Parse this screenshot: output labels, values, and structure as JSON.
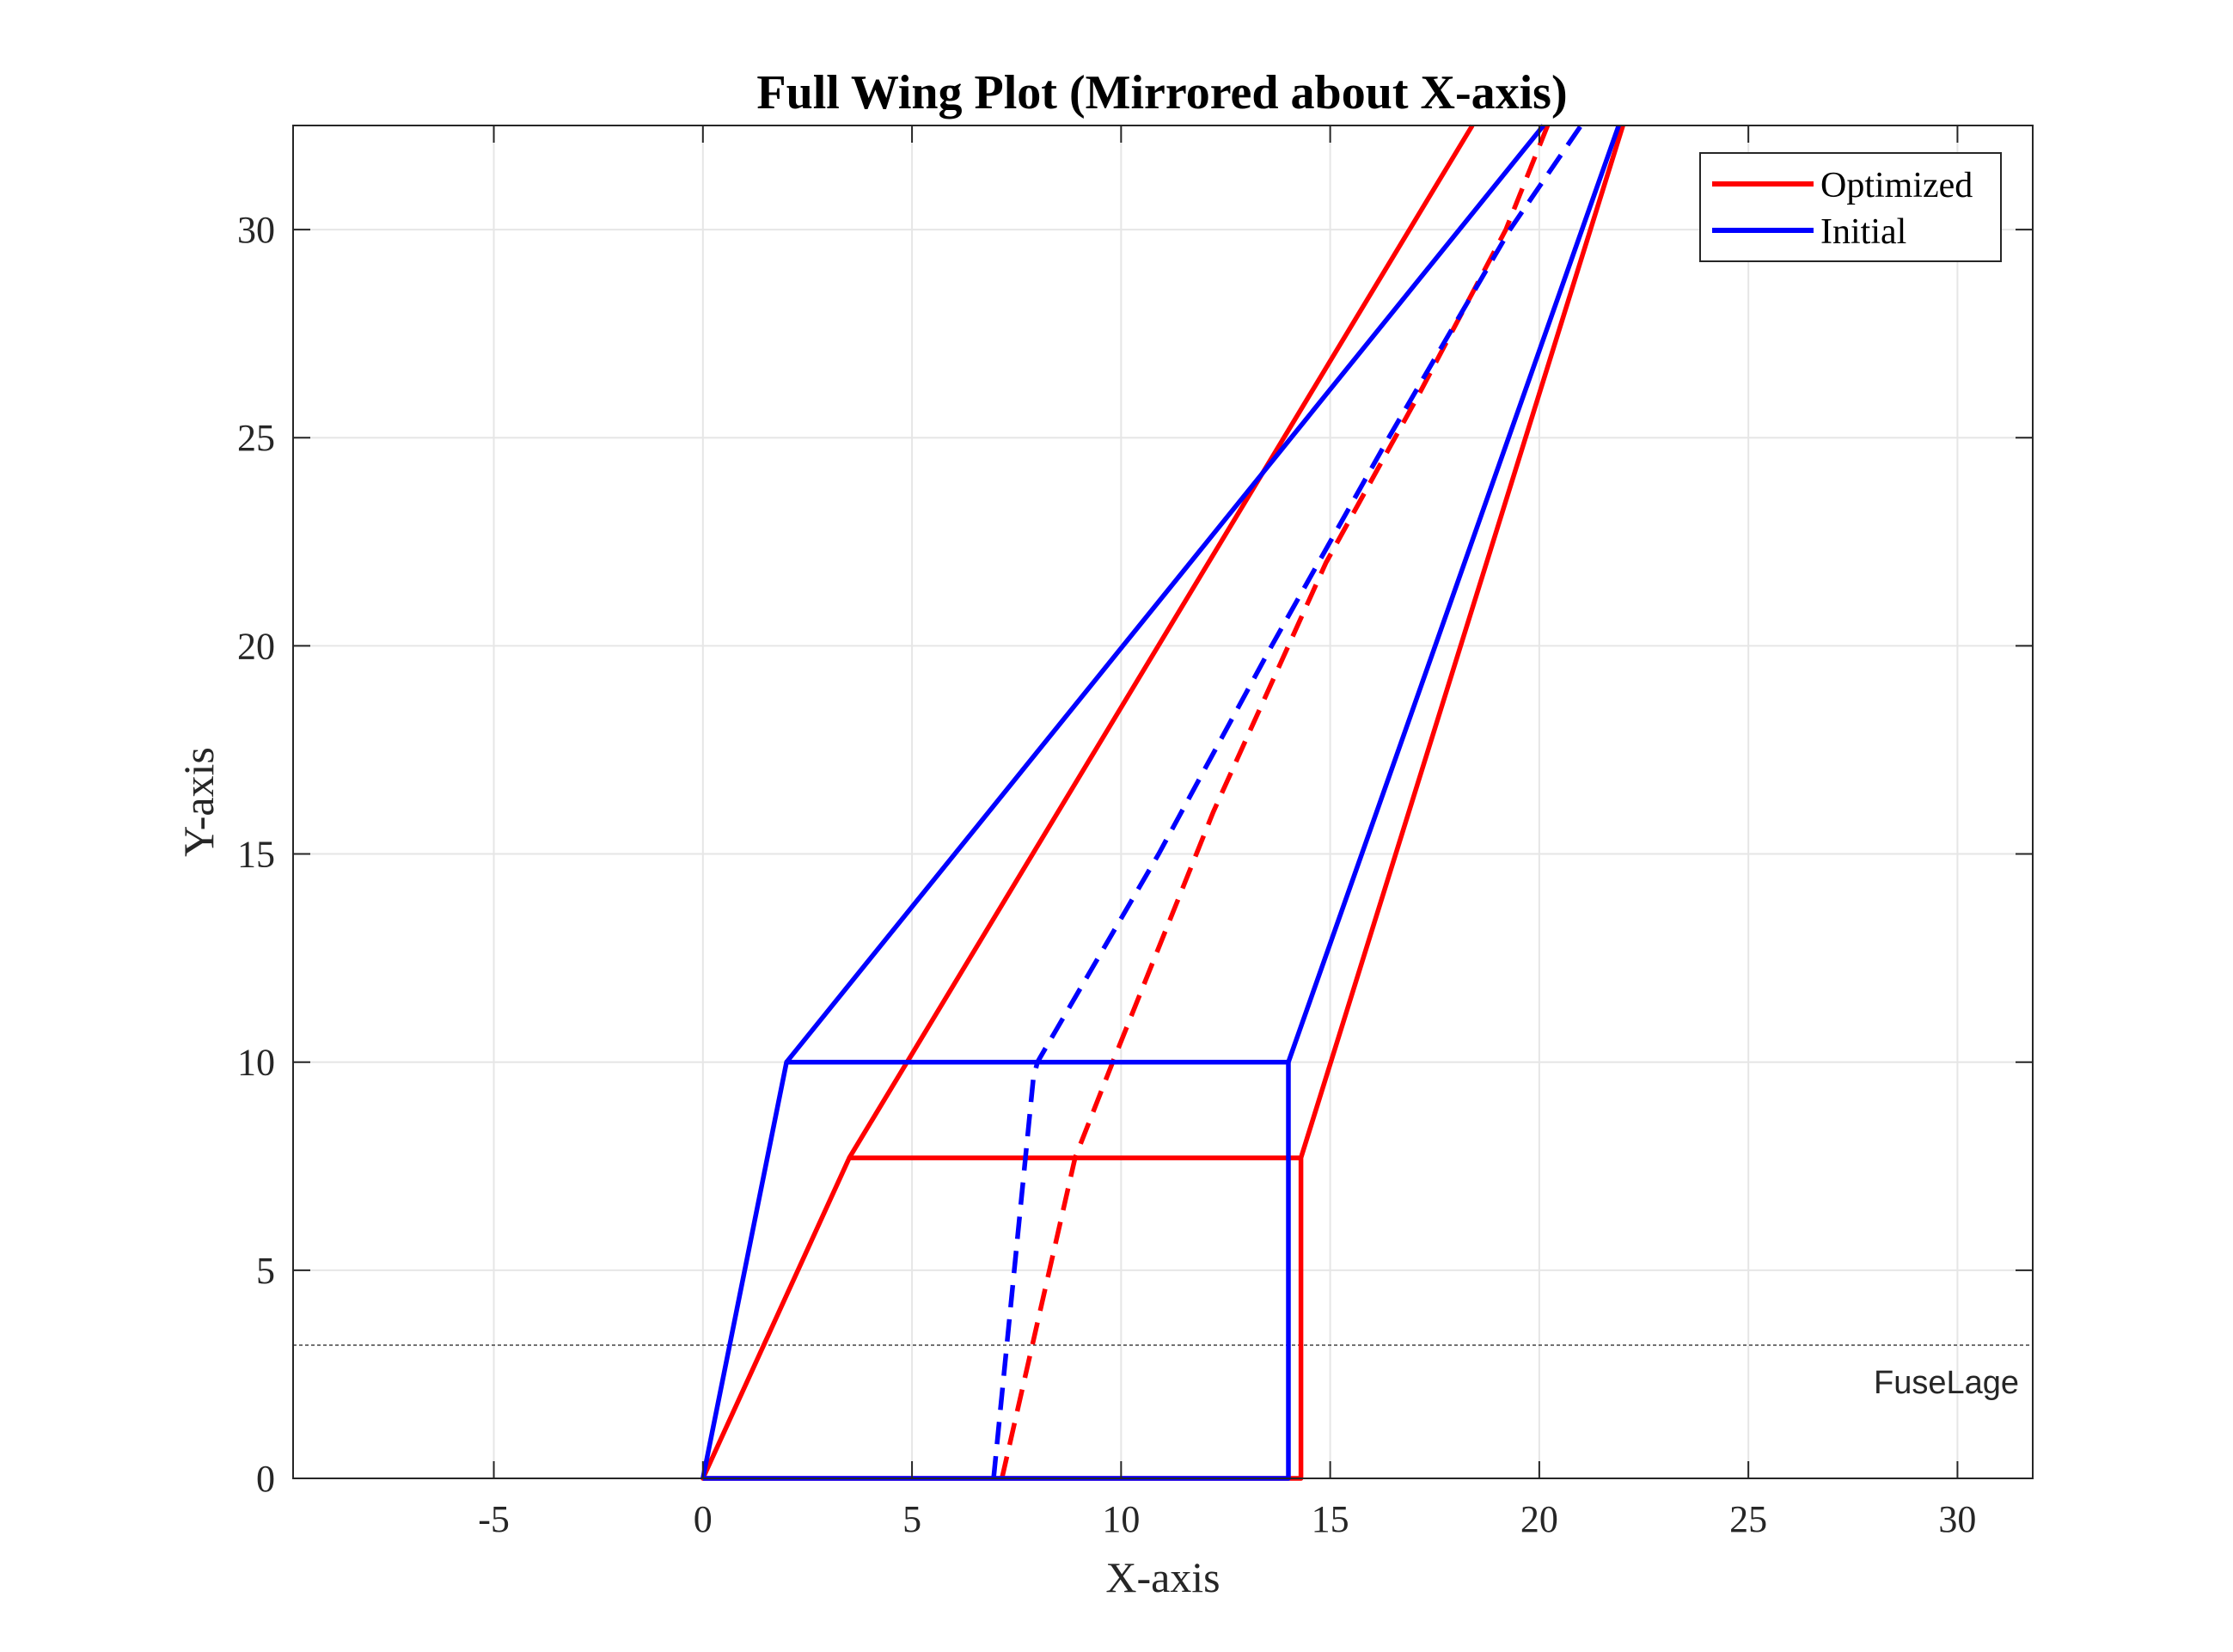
{
  "chart_data": {
    "type": "line",
    "title": "Full Wing Plot (Mirrored about X-axis)",
    "xlabel": "X-axis",
    "ylabel": "Y-axis",
    "xlim": [
      -9.8,
      31.8
    ],
    "ylim": [
      0,
      32.5
    ],
    "xticks": [
      -5,
      0,
      5,
      10,
      15,
      20,
      25,
      30
    ],
    "yticks": [
      0,
      5,
      10,
      15,
      20,
      25,
      30
    ],
    "xtick_labels": [
      "-5",
      "0",
      "5",
      "10",
      "15",
      "20",
      "25",
      "30"
    ],
    "ytick_labels": [
      "0",
      "5",
      "10",
      "15",
      "20",
      "25",
      "30"
    ],
    "grid": true,
    "legend_position": "top-right",
    "series": [
      {
        "name": "Optimized",
        "color": "#ff0000",
        "style": "solid",
        "points": [
          [
            14.3,
            0
          ],
          [
            14.3,
            7.7
          ],
          [
            3.5,
            7.7
          ],
          [
            0,
            0
          ],
          [
            14.3,
            0
          ],
          [
            14.3,
            7.7
          ],
          [
            22.0,
            32.5
          ]
        ]
      },
      {
        "color": "#ff0000",
        "style": "solid",
        "points": [
          [
            3.5,
            7.7
          ],
          [
            18.4,
            32.5
          ]
        ]
      },
      {
        "color": "#ff0000",
        "style": "dashed",
        "points": [
          [
            7.15,
            0
          ],
          [
            8.9,
            7.7
          ],
          [
            9.8,
            10
          ],
          [
            12.2,
            16
          ],
          [
            14.9,
            22
          ],
          [
            17.1,
            26
          ],
          [
            19.2,
            30
          ],
          [
            20.2,
            32.5
          ]
        ]
      },
      {
        "name": "Initial",
        "color": "#0000ff",
        "style": "solid",
        "points": [
          [
            0,
            0
          ],
          [
            2.0,
            10
          ],
          [
            14.0,
            10
          ],
          [
            14.0,
            0
          ],
          [
            0,
            0
          ]
        ]
      },
      {
        "color": "#0000ff",
        "style": "solid",
        "points": [
          [
            2.0,
            10
          ],
          [
            20.1,
            32.5
          ]
        ]
      },
      {
        "color": "#0000ff",
        "style": "solid",
        "points": [
          [
            14.0,
            10
          ],
          [
            21.9,
            32.5
          ]
        ]
      },
      {
        "color": "#0000ff",
        "style": "dashed",
        "points": [
          [
            6.95,
            0
          ],
          [
            7.9,
            9.6
          ],
          [
            8.0,
            10
          ],
          [
            10.9,
            15
          ],
          [
            13.6,
            20
          ],
          [
            16.4,
            25
          ],
          [
            19.3,
            30
          ],
          [
            21.0,
            32.5
          ]
        ]
      }
    ],
    "annotations": [
      {
        "text": "FuseLage",
        "kind": "hline",
        "y": 3.2,
        "color": "#444444"
      }
    ]
  }
}
